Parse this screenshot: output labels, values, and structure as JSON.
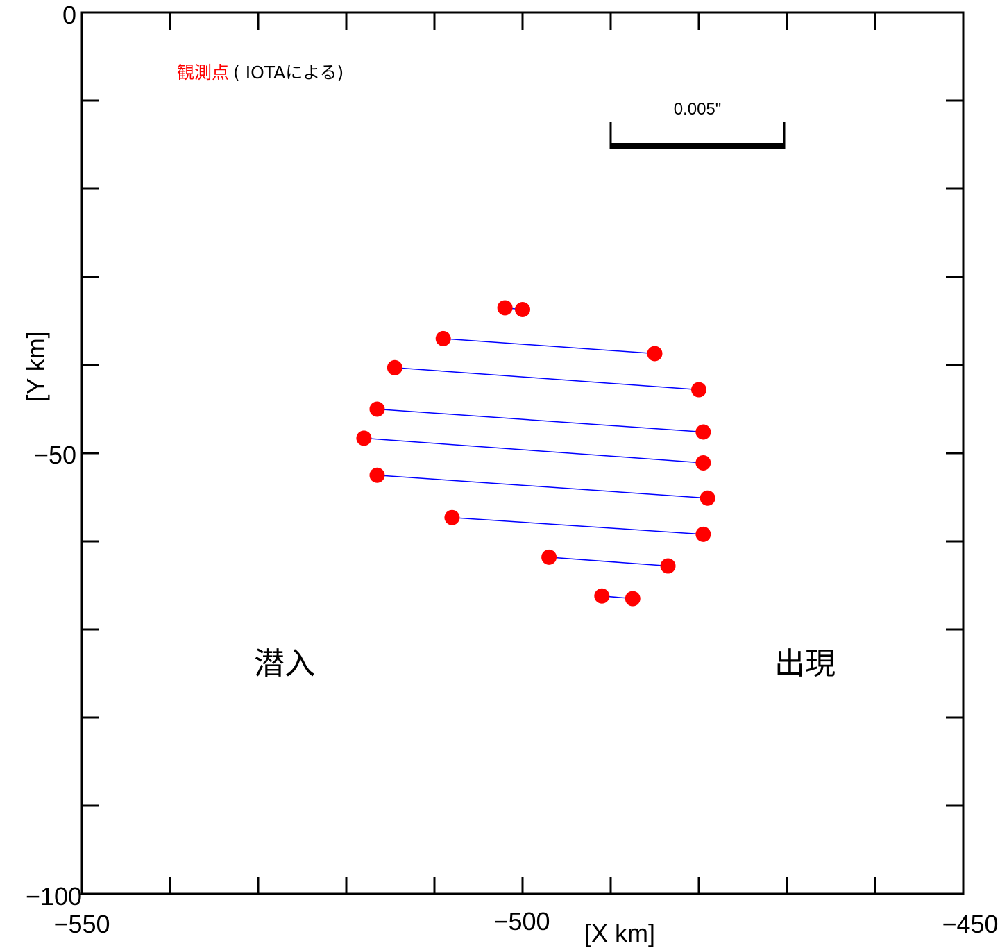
{
  "chart_data": {
    "type": "scatter",
    "xlabel": "[X  km]",
    "ylabel": "[Y  km]",
    "xlim": [
      -550,
      -450
    ],
    "ylim": [
      -100,
      0
    ],
    "x_tick_labels": [
      "−550",
      "−500",
      "−450"
    ],
    "y_tick_labels": [
      "0",
      "−50",
      "−100"
    ],
    "legend": {
      "marker_label": "観測点",
      "source_label": "( IOTAによる)",
      "marker_color": "#ff0000",
      "placement": "top-left"
    },
    "scale_bar": {
      "label": "0.005\"",
      "x_start": -490,
      "x_end": -470
    },
    "annotations": {
      "disappearance": "潜入",
      "reappearance": "出現"
    },
    "line_color": "#0000ff",
    "chords": [
      {
        "disappear": [
          -502.0,
          -33.5
        ],
        "reappear": [
          -500.0,
          -33.7
        ]
      },
      {
        "disappear": [
          -509.0,
          -37.0
        ],
        "reappear": [
          -485.0,
          -38.7
        ]
      },
      {
        "disappear": [
          -514.5,
          -40.3
        ],
        "reappear": [
          -480.0,
          -42.8
        ]
      },
      {
        "disappear": [
          -516.5,
          -45.0
        ],
        "reappear": [
          -479.5,
          -47.6
        ]
      },
      {
        "disappear": [
          -518.0,
          -48.3
        ],
        "reappear": [
          -479.5,
          -51.1
        ]
      },
      {
        "disappear": [
          -516.5,
          -52.5
        ],
        "reappear": [
          -479.0,
          -55.1
        ]
      },
      {
        "disappear": [
          -508.0,
          -57.3
        ],
        "reappear": [
          -479.5,
          -59.2
        ]
      },
      {
        "disappear": [
          -497.0,
          -61.8
        ],
        "reappear": [
          -483.5,
          -62.8
        ]
      },
      {
        "disappear": [
          -491.0,
          -66.2
        ],
        "reappear": [
          -487.5,
          -66.5
        ]
      }
    ]
  }
}
